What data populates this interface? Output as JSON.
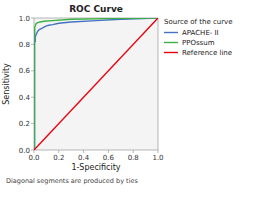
{
  "chart_data": {
    "type": "line",
    "title": "ROC Curve",
    "x_label": "1-Specificity",
    "y_label": "Sensitivity",
    "annotations": [
      "Diagonal segments are produced by ties"
    ],
    "legend_title": "Source of the curve",
    "legend": "right",
    "grid": false,
    "xlim": [
      0.0,
      1.0
    ],
    "ylim": [
      0.0,
      1.0
    ],
    "xticks": [
      {
        "value": 0.0,
        "label": "0.0"
      },
      0.2,
      0.4,
      0.6,
      0.8,
      {
        "value": 1.0,
        "label": "1.0"
      }
    ],
    "yticks": [
      {
        "value": 0.0,
        "label": "0.0"
      },
      0.2,
      0.4,
      0.6,
      0.8,
      {
        "value": 1.0,
        "label": "1.0"
      }
    ],
    "series": [
      {
        "name": "APACHE- II",
        "color": "#4472c4",
        "x": [
          0.0,
          0.005,
          0.005,
          0.01,
          0.01,
          0.015,
          0.02,
          0.025,
          0.03,
          0.04,
          0.05,
          0.06,
          0.07,
          0.08,
          0.09,
          0.1,
          0.12,
          0.15,
          0.2,
          0.3,
          0.5,
          0.7,
          1.0
        ],
        "values": [
          0.0,
          0.0,
          0.82,
          0.82,
          0.855,
          0.87,
          0.88,
          0.89,
          0.9,
          0.91,
          0.915,
          0.92,
          0.925,
          0.93,
          0.935,
          0.94,
          0.945,
          0.95,
          0.96,
          0.97,
          0.98,
          0.99,
          1.0
        ]
      },
      {
        "name": "PPOssum",
        "color": "#3cb044",
        "x": [
          0.0,
          0.003,
          0.003,
          0.006,
          0.006,
          0.01,
          0.015,
          0.02,
          0.03,
          0.05,
          0.08,
          0.15,
          0.3,
          0.6,
          1.0
        ],
        "values": [
          0.0,
          0.0,
          0.88,
          0.88,
          0.93,
          0.94,
          0.955,
          0.96,
          0.965,
          0.97,
          0.975,
          0.98,
          0.99,
          0.995,
          1.0
        ]
      },
      {
        "name": "Reference line",
        "color": "#e8000d",
        "x": [
          0.0,
          1.0
        ],
        "values": [
          0.0,
          1.0
        ]
      }
    ]
  }
}
